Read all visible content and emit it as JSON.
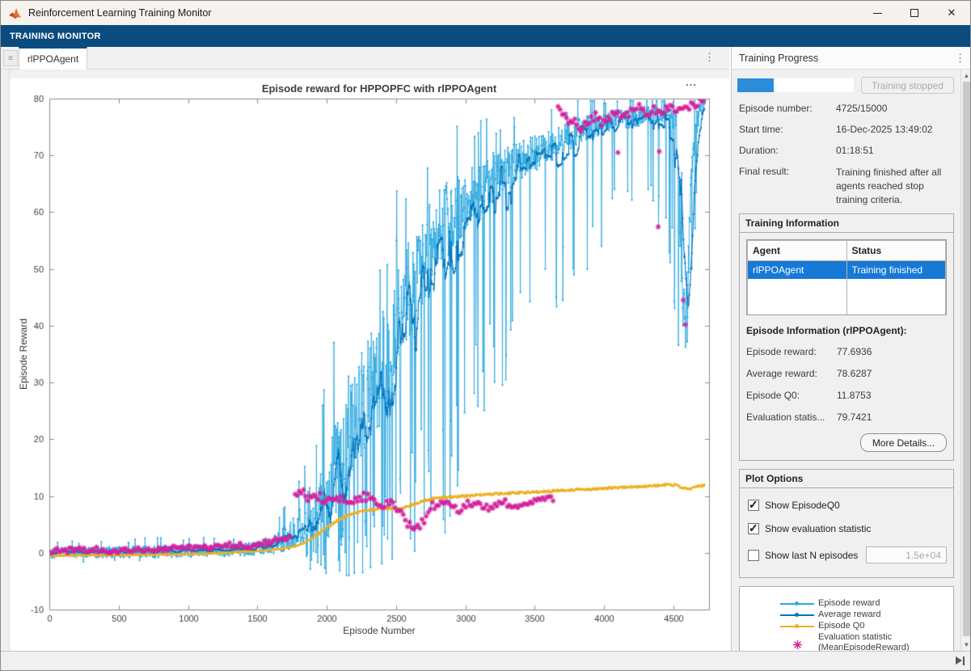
{
  "window": {
    "title": "Reinforcement Learning Training Monitor"
  },
  "icons": {
    "minimize": "minimize",
    "maximize": "maximize",
    "close": "✕",
    "kebab": "⋮",
    "hamburger": "≡",
    "axes_options": "...",
    "scroll_up": "▲",
    "scroll_down": "▼",
    "skip_end": "skip-to-end",
    "matlab_logo": "matlab-logo"
  },
  "ribbon": {
    "label": "TRAINING MONITOR"
  },
  "tabs": {
    "active": "rlPPOAgent"
  },
  "right_panel": {
    "header": "Training Progress",
    "progress": {
      "value": 4725,
      "max": 15000,
      "percent": 31.5,
      "button_label": "Training stopped"
    },
    "fields": [
      {
        "label": "Episode number:",
        "value": "4725/15000"
      },
      {
        "label": "Start time:",
        "value": "16-Dec-2025 13:49:02"
      },
      {
        "label": "Duration:",
        "value": "01:18:51"
      },
      {
        "label": "Final result:",
        "value": "Training finished after all agents reached stop training criteria."
      }
    ],
    "training_information": {
      "title": "Training Information",
      "table": {
        "headers": [
          "Agent",
          "Status"
        ],
        "rows": [
          {
            "agent": "rlPPOAgent",
            "status": "Training finished",
            "selected": true
          }
        ]
      },
      "episode_info_title": "Episode Information (rlPPOAgent):",
      "episode_fields": [
        {
          "label": "Episode reward:",
          "value": "77.6936"
        },
        {
          "label": "Average reward:",
          "value": "78.6287"
        },
        {
          "label": "Episode Q0:",
          "value": "11.8753"
        },
        {
          "label": "Evaluation statis...",
          "value": "79.7421"
        }
      ],
      "more_details_label": "More Details..."
    },
    "plot_options": {
      "title": "Plot Options",
      "checkboxes": [
        {
          "label": "Show EpisodeQ0",
          "checked": true
        },
        {
          "label": "Show evaluation statistic",
          "checked": true
        },
        {
          "label": "Show last N episodes",
          "checked": false
        }
      ],
      "n_field_value": "1.5e+04"
    }
  },
  "chart_data": {
    "type": "line",
    "title": "Episode reward for HPPOPFC with rlPPOAgent",
    "xlabel": "Episode Number",
    "ylabel": "Episode Reward",
    "xlim": [
      0,
      4756
    ],
    "ylim": [
      -10,
      80
    ],
    "xticks": [
      0,
      500,
      1000,
      1500,
      2000,
      2500,
      3000,
      3500,
      4000,
      4500
    ],
    "yticks": [
      -10,
      0,
      10,
      20,
      30,
      40,
      50,
      60,
      70,
      80
    ],
    "grid": false,
    "legend_position": "right-panel-box",
    "episodes_total": 4725,
    "series": [
      {
        "name": "Episode reward",
        "color": "#2fa9e0",
        "style": "noisy-line-with-dot-markers",
        "final_value": 77.6936,
        "mean_anchors": [
          [
            0,
            0
          ],
          [
            900,
            0.2
          ],
          [
            1400,
            0.5
          ],
          [
            1600,
            1.2
          ],
          [
            1750,
            3
          ],
          [
            1850,
            6
          ],
          [
            1950,
            9
          ],
          [
            2050,
            14
          ],
          [
            2150,
            21
          ],
          [
            2250,
            26
          ],
          [
            2350,
            30
          ],
          [
            2450,
            36
          ],
          [
            2550,
            44
          ],
          [
            2650,
            50
          ],
          [
            2750,
            55
          ],
          [
            2850,
            58
          ],
          [
            2950,
            61
          ],
          [
            3050,
            63
          ],
          [
            3150,
            65
          ],
          [
            3250,
            67
          ],
          [
            3400,
            69
          ],
          [
            3550,
            71
          ],
          [
            3650,
            72
          ],
          [
            3750,
            73.5
          ],
          [
            3850,
            74.5
          ],
          [
            3950,
            75.5
          ],
          [
            4050,
            76
          ],
          [
            4200,
            76.5
          ],
          [
            4350,
            77.5
          ],
          [
            4480,
            77.5
          ],
          [
            4520,
            76
          ],
          [
            4545,
            58
          ],
          [
            4570,
            44
          ],
          [
            4590,
            40
          ],
          [
            4610,
            52
          ],
          [
            4635,
            66
          ],
          [
            4660,
            75
          ],
          [
            4690,
            77.5
          ],
          [
            4725,
            78.5
          ]
        ],
        "noise_anchors": [
          [
            0,
            0.9
          ],
          [
            1500,
            1.1
          ],
          [
            1700,
            2.2
          ],
          [
            1900,
            5
          ],
          [
            2000,
            8
          ],
          [
            2100,
            10
          ],
          [
            2300,
            10
          ],
          [
            2500,
            9
          ],
          [
            2700,
            8
          ],
          [
            2900,
            6.5
          ],
          [
            3100,
            5
          ],
          [
            3300,
            4
          ],
          [
            3500,
            3.2
          ],
          [
            3700,
            2.6
          ],
          [
            4000,
            2
          ],
          [
            4300,
            1.6
          ],
          [
            4480,
            1.4
          ],
          [
            4560,
            7
          ],
          [
            4620,
            6
          ],
          [
            4660,
            2.5
          ],
          [
            4725,
            1.2
          ]
        ],
        "down_spike_prob_anchors": [
          [
            0,
            0.004
          ],
          [
            1700,
            0.01
          ],
          [
            1900,
            0.08
          ],
          [
            2100,
            0.2
          ],
          [
            2500,
            0.2
          ],
          [
            2800,
            0.16
          ],
          [
            3100,
            0.13
          ],
          [
            3500,
            0.1
          ],
          [
            3800,
            0.07
          ],
          [
            4100,
            0.05
          ],
          [
            4400,
            0.05
          ],
          [
            4520,
            0.12
          ],
          [
            4620,
            0.12
          ],
          [
            4725,
            0.04
          ]
        ],
        "spike_floor_anchors": [
          [
            0,
            -1.5
          ],
          [
            1800,
            -3
          ],
          [
            2200,
            -4.5
          ],
          [
            2600,
            -2
          ],
          [
            2850,
            2
          ],
          [
            3000,
            15
          ],
          [
            3200,
            24
          ],
          [
            3400,
            30
          ],
          [
            3600,
            40
          ],
          [
            3800,
            48
          ],
          [
            4100,
            55
          ],
          [
            4450,
            58
          ],
          [
            4510,
            36
          ],
          [
            4620,
            36
          ],
          [
            4680,
            60
          ],
          [
            4725,
            62
          ]
        ],
        "up_spike_prob": 0.045
      },
      {
        "name": "Average reward",
        "color": "#0072bd",
        "style": "running-mean-line-with-dot-markers",
        "window_episodes": 45,
        "final_value": 78.6287
      },
      {
        "name": "Episode Q0",
        "color": "#edb120",
        "style": "line-with-dot-markers",
        "final_value": 11.8753,
        "anchors": [
          [
            0,
            -0.5
          ],
          [
            600,
            -0.4
          ],
          [
            1100,
            -0.2
          ],
          [
            1500,
            0.3
          ],
          [
            1700,
            0.8
          ],
          [
            1800,
            1.3
          ],
          [
            1900,
            2.6
          ],
          [
            2000,
            4.4
          ],
          [
            2100,
            6
          ],
          [
            2200,
            7
          ],
          [
            2300,
            7.5
          ],
          [
            2400,
            7.9
          ],
          [
            2520,
            7.7
          ],
          [
            2600,
            8.3
          ],
          [
            2700,
            9.2
          ],
          [
            2800,
            9.7
          ],
          [
            2950,
            9.9
          ],
          [
            3100,
            10.2
          ],
          [
            3300,
            10.5
          ],
          [
            3500,
            10.7
          ],
          [
            3700,
            11
          ],
          [
            3900,
            11.2
          ],
          [
            4100,
            11.5
          ],
          [
            4300,
            11.7
          ],
          [
            4450,
            12
          ],
          [
            4520,
            11.9
          ],
          [
            4560,
            11.4
          ],
          [
            4620,
            11.3
          ],
          [
            4660,
            11.6
          ],
          [
            4725,
            11.9
          ]
        ]
      },
      {
        "name": "Evaluation statistic (MeanEpisodeReward)",
        "color": "#d4219c",
        "style": "asterisk-markers",
        "final_value": 79.7421,
        "interval_episodes": 15,
        "low_anchors": [
          [
            10,
            0.3
          ],
          [
            300,
            0.6
          ],
          [
            500,
            0.3
          ],
          [
            800,
            0.7
          ],
          [
            1100,
            0.9
          ],
          [
            1300,
            1.4
          ],
          [
            1450,
            1.1
          ],
          [
            1600,
            2
          ],
          [
            1700,
            2.6
          ],
          [
            1748,
            3
          ]
        ],
        "mid_anchors": [
          [
            1772,
            10.4
          ],
          [
            1820,
            10.9
          ],
          [
            1870,
            9.6
          ],
          [
            1930,
            10.1
          ],
          [
            1990,
            9.2
          ],
          [
            2080,
            9.4
          ],
          [
            2180,
            9.3
          ],
          [
            2260,
            9.9
          ],
          [
            2330,
            9.4
          ],
          [
            2400,
            8.4
          ],
          [
            2460,
            9.1
          ],
          [
            2520,
            7.6
          ],
          [
            2570,
            5.1
          ],
          [
            2650,
            4.6
          ],
          [
            2700,
            5.6
          ],
          [
            2760,
            8.2
          ],
          [
            2820,
            8.9
          ],
          [
            2880,
            8.3
          ],
          [
            2940,
            7.4
          ],
          [
            3000,
            8.7
          ],
          [
            3060,
            8.9
          ],
          [
            3130,
            7.9
          ],
          [
            3200,
            8.4
          ],
          [
            3270,
            9.4
          ],
          [
            3330,
            8.1
          ],
          [
            3390,
            7.7
          ],
          [
            3450,
            8.5
          ],
          [
            3520,
            8.8
          ],
          [
            3580,
            9.4
          ],
          [
            3645,
            9.1
          ]
        ],
        "high_anchors": [
          [
            3668,
            78.3
          ],
          [
            3700,
            77.2
          ],
          [
            3740,
            75.4
          ],
          [
            3790,
            76
          ],
          [
            3840,
            74.8
          ],
          [
            3890,
            76.2
          ],
          [
            3940,
            77
          ],
          [
            3990,
            75.6
          ],
          [
            4040,
            76.8
          ],
          [
            4090,
            77.6
          ],
          [
            4140,
            76.2
          ],
          [
            4200,
            77.8
          ],
          [
            4260,
            78.6
          ],
          [
            4310,
            77.2
          ],
          [
            4360,
            78.2
          ],
          [
            4410,
            77
          ],
          [
            4460,
            78.4
          ],
          [
            4510,
            77.6
          ],
          [
            4560,
            78
          ],
          [
            4610,
            78.6
          ],
          [
            4660,
            79
          ],
          [
            4700,
            79.5
          ],
          [
            4725,
            79.7
          ]
        ],
        "outliers": [
          [
            4100,
            70.5
          ],
          [
            4390,
            57.4
          ],
          [
            4398,
            70.7
          ],
          [
            4570,
            44.5
          ],
          [
            4586,
            40.2
          ]
        ]
      }
    ]
  }
}
